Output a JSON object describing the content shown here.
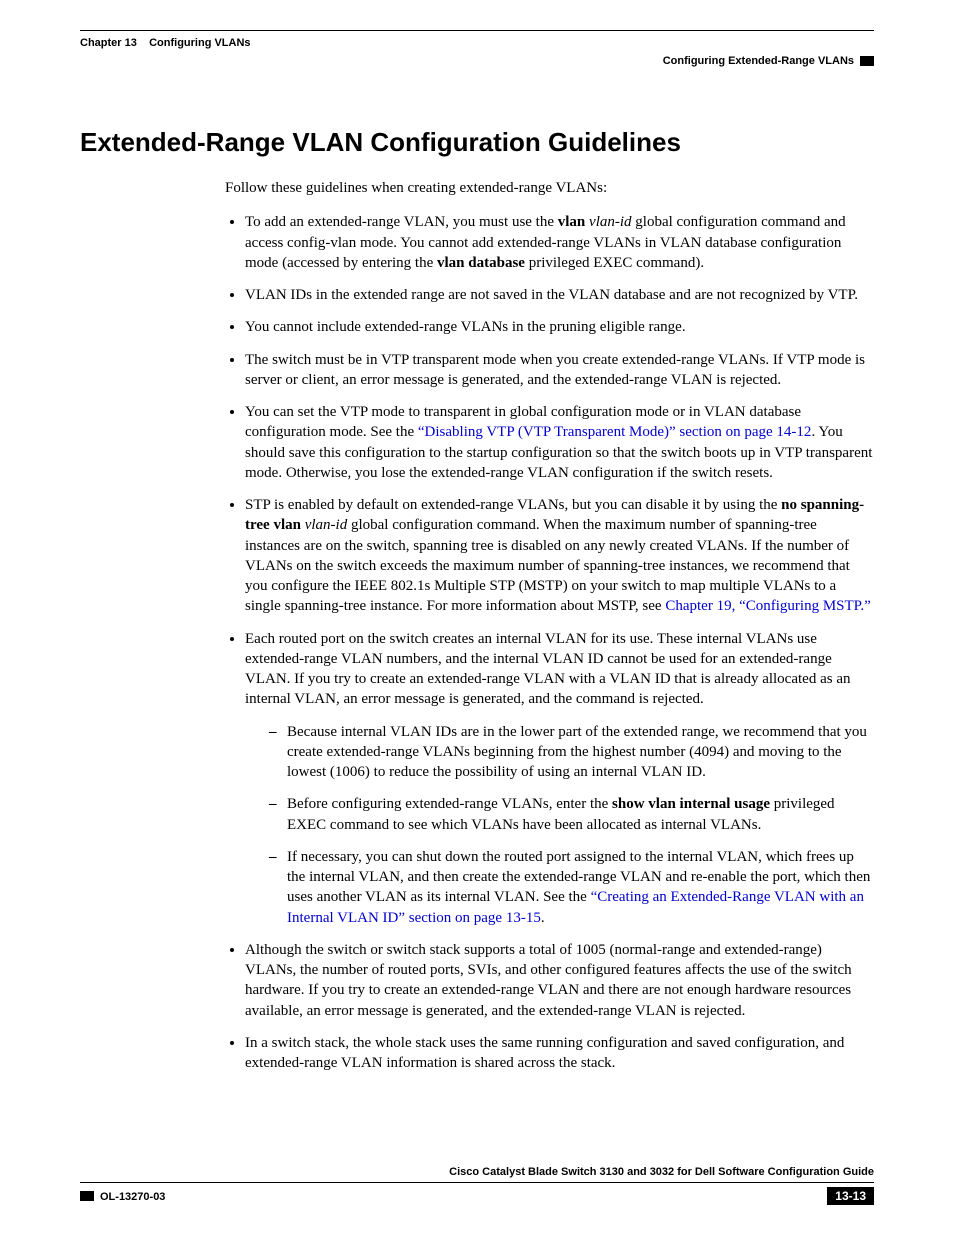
{
  "header": {
    "chapter_prefix": "Chapter 13",
    "chapter_title": "Configuring VLANs",
    "section_title": "Configuring Extended-Range VLANs"
  },
  "heading": "Extended-Range VLAN Configuration Guidelines",
  "intro": "Follow these guidelines when creating extended-range VLANs:",
  "b1": {
    "p1": "To add an extended-range VLAN, you must use the ",
    "b1": "vlan",
    "sp1": " ",
    "i1": "vlan-id",
    "p2": " global configuration command and access config-vlan mode. You cannot add extended-range VLANs in VLAN database configuration mode (accessed by entering the ",
    "b2": "vlan database",
    "p3": " privileged EXEC command)."
  },
  "b2": "VLAN IDs in the extended range are not saved in the VLAN database and are not recognized by VTP.",
  "b3": "You cannot include extended-range VLANs in the pruning eligible range.",
  "b4": "The switch must be in VTP transparent mode when you create extended-range VLANs. If VTP mode is server or client, an error message is generated, and the extended-range VLAN is rejected.",
  "b5": {
    "p1": "You can set the VTP mode to transparent in global configuration mode or in VLAN database configuration mode. See the ",
    "link": "“Disabling VTP (VTP Transparent Mode)” section on page 14-12",
    "p2": ". You should save this configuration to the startup configuration so that the switch boots up in VTP transparent mode. Otherwise, you lose the extended-range VLAN configuration if the switch resets."
  },
  "b6": {
    "p1": "STP is enabled by default on extended-range VLANs, but you can disable it by using the ",
    "b1": "no spanning-tree vlan",
    "sp1": " ",
    "i1": "vlan-id",
    "p2": " global configuration command. When the maximum number of spanning-tree instances are on the switch, spanning tree is disabled on any newly created VLANs. If the number of VLANs on the switch exceeds the maximum number of spanning-tree instances, we recommend that you configure the IEEE 802.1s Multiple STP (MSTP) on your switch to map multiple VLANs to a single spanning-tree instance. For more information about MSTP, see ",
    "link": "Chapter 19, “Configuring MSTP.”"
  },
  "b7": {
    "p1": "Each routed port on the switch creates an internal VLAN for its use. These internal VLANs use extended-range VLAN numbers, and the internal VLAN ID cannot be used for an extended-range VLAN. If you try to create an extended-range VLAN with a VLAN ID that is already allocated as an internal VLAN, an error message is generated, and the command is rejected.",
    "s1": "Because internal VLAN IDs are in the lower part of the extended range, we recommend that you create extended-range VLANs beginning from the highest number (4094) and moving to the lowest (1006) to reduce the possibility of using an internal VLAN ID.",
    "s2": {
      "p1": "Before configuring extended-range VLANs, enter the ",
      "b1": "show vlan internal usage",
      "p2": " privileged EXEC command to see which VLANs have been allocated as internal VLANs."
    },
    "s3": {
      "p1": "If necessary, you can shut down the routed port assigned to the internal VLAN, which frees up the internal VLAN, and then create the extended-range VLAN and re-enable the port, which then uses another VLAN as its internal VLAN. See the ",
      "link": "“Creating an Extended-Range VLAN with an Internal VLAN ID” section on page 13-15",
      "p2": "."
    }
  },
  "b8": "Although the switch or switch stack supports a total of 1005 (normal-range and extended-range) VLANs, the number of routed ports, SVIs, and other configured features affects the use of the switch hardware. If you try to create an extended-range VLAN and there are not enough hardware resources available, an error message is generated, and the extended-range VLAN is rejected.",
  "b9": "In a switch stack, the whole stack uses the same running configuration and saved configuration, and extended-range VLAN information is shared across the stack.",
  "footer": {
    "guide_title": "Cisco Catalyst Blade Switch 3130 and 3032 for Dell Software Configuration Guide",
    "doc_id": "OL-13270-03",
    "page_num": "13-13"
  }
}
